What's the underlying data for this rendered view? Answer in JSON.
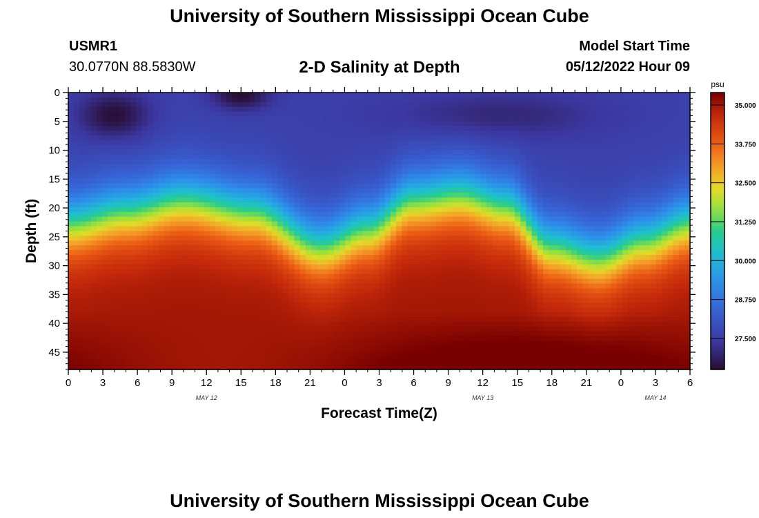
{
  "header": {
    "title": "University of Southern Mississippi Ocean Cube",
    "station": "USMR1",
    "coords": "30.0770N  88.5830W",
    "plot_title": "2-D Salinity at Depth",
    "start_label": "Model Start Time",
    "start_value": "05/12/2022 Hour 09"
  },
  "footer": {
    "title": "University of Southern Mississippi Ocean Cube"
  },
  "chart_data": {
    "type": "heatmap",
    "title": "2-D Salinity at Depth",
    "xlabel": "Forecast Time(Z)",
    "ylabel": "Depth (ft)",
    "x_ticks": [
      "0",
      "3",
      "6",
      "9",
      "12",
      "15",
      "18",
      "21",
      "0",
      "3",
      "6",
      "9",
      "12",
      "15",
      "18",
      "21",
      "0",
      "3",
      "6"
    ],
    "x_hours_range": [
      0,
      54
    ],
    "day_labels": [
      {
        "label": "MAY 12",
        "hour": 12
      },
      {
        "label": "MAY 13",
        "hour": 36
      },
      {
        "label": "MAY 14",
        "hour": 51
      }
    ],
    "y_ticks": [
      "0",
      "5",
      "10",
      "15",
      "20",
      "25",
      "30",
      "35",
      "40",
      "45"
    ],
    "ylim": [
      0,
      48
    ],
    "colorbar": {
      "unit": "psu",
      "min": 26.5,
      "max": 35.4,
      "ticks": [
        "35.000",
        "33.750",
        "32.500",
        "31.250",
        "30.000",
        "28.750",
        "27.500"
      ],
      "tick_values": [
        35.0,
        33.75,
        32.5,
        31.25,
        30.0,
        28.75,
        27.5
      ]
    },
    "halocline_depth_ft": {
      "hours": [
        0,
        5,
        10,
        16,
        22,
        26,
        30,
        34,
        38,
        42,
        46,
        50,
        54
      ],
      "depths": [
        23,
        21,
        19,
        21,
        27,
        24,
        19,
        18,
        20,
        27,
        29,
        26,
        23
      ]
    },
    "surface_salinity_psu": 27.6,
    "bottom_salinity_psu": 35.0
  }
}
